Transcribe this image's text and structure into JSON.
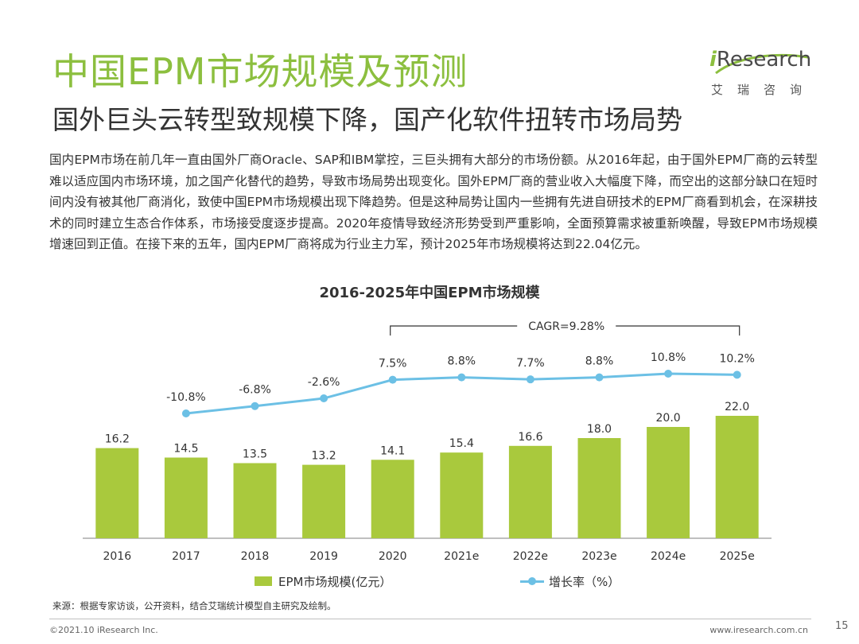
{
  "header": {
    "title": "中国EPM市场规模及预测",
    "subtitle": "国外巨头云转型致规模下降，国产化软件扭转市场局势"
  },
  "logo": {
    "wordmark_i": "i",
    "wordmark_rest": "Research",
    "cn": "艾瑞咨询"
  },
  "body": {
    "paragraph": "国内EPM市场在前几年一直由国外厂商Oracle、SAP和IBM掌控，三巨头拥有大部分的市场份额。从2016年起，由于国外EPM厂商的云转型难以适应国内市场环境，加之国产化替代的趋势，导致市场局势出现变化。国外EPM厂商的营业收入大幅度下降，而空出的这部分缺口在短时间内没有被其他厂商消化，致使中国EPM市场规模出现下降趋势。但是这种局势让国内一些拥有先进自研技术的EPM厂商看到机会，在深耕技术的同时建立生态合作体系，市场接受度逐步提高。2020年疫情导致经济形势受到严重影响，全面预算需求被重新唤醒，导致EPM市场规模增速回到正值。在接下来的五年，国内EPM厂商将成为行业主力军，预计2025年市场规模将达到22.04亿元。"
  },
  "chart_data": {
    "type": "bar",
    "title": "2016-2025年中国EPM市场规模",
    "categories": [
      "2016",
      "2017",
      "2018",
      "2019",
      "2020",
      "2021e",
      "2022e",
      "2023e",
      "2024e",
      "2025e"
    ],
    "series": [
      {
        "name": "EPM市场规模(亿元）",
        "type": "bar",
        "values": [
          16.2,
          14.5,
          13.5,
          13.2,
          14.1,
          15.4,
          16.6,
          18.0,
          20.0,
          22.0
        ],
        "labels": [
          "16.2",
          "14.5",
          "13.5",
          "13.2",
          "14.1",
          "15.4",
          "16.6",
          "18.0",
          "20.0",
          "22.0"
        ]
      },
      {
        "name": "增长率（%）",
        "type": "line",
        "x": [
          "2017",
          "2018",
          "2019",
          "2020",
          "2021e",
          "2022e",
          "2023e",
          "2024e",
          "2025e"
        ],
        "values": [
          -10.8,
          -6.8,
          -2.6,
          7.5,
          8.8,
          7.7,
          8.8,
          10.8,
          10.2
        ],
        "labels": [
          "-10.8%",
          "-6.8%",
          "-2.6%",
          "7.5%",
          "8.8%",
          "7.7%",
          "8.8%",
          "10.8%",
          "10.2%"
        ]
      }
    ],
    "annotation": {
      "text": "CAGR=9.28%",
      "from": "2020",
      "to": "2025e"
    },
    "ylim_bar": [
      0,
      22.0
    ],
    "ylim_line": [
      -10.8,
      10.8
    ],
    "grid": false,
    "legend_position": "bottom",
    "colors": {
      "bar": "#a9c93d",
      "line": "#6cc0e5"
    }
  },
  "source": "来源：根据专家访谈，公开资料，结合艾瑞统计模型自主研究及绘制。",
  "footer": {
    "copyright": "©2021.10 iResearch Inc.",
    "website": "www.iresearch.com.cn",
    "page": "15"
  }
}
